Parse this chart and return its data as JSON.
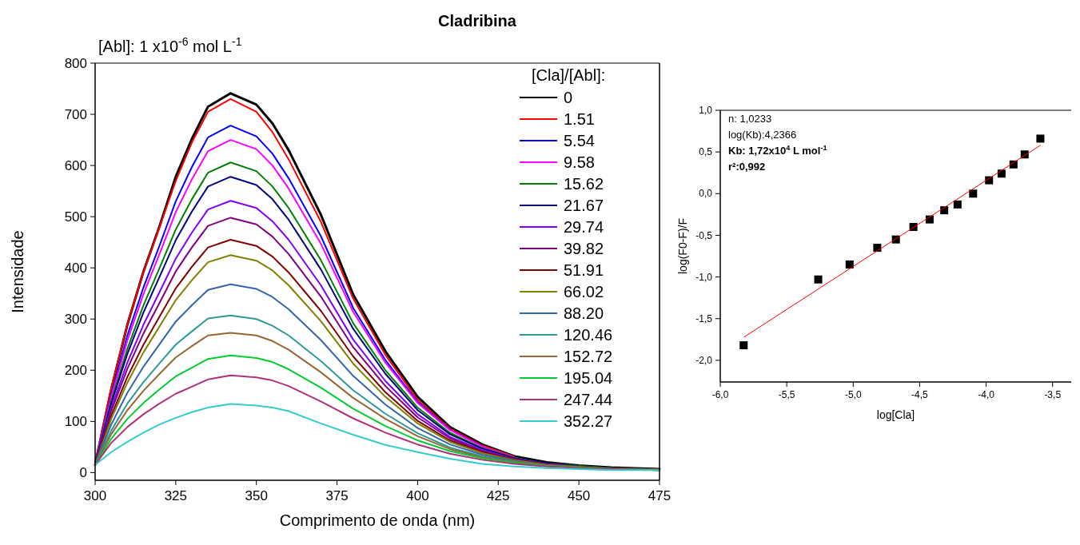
{
  "chart_data": [
    {
      "type": "line",
      "title": "Cladribina",
      "subtitle": "[Abl]: 1 x10$^{-6}$ mol L$^{-1}$",
      "xlabel": "Comprimento de onda (nm)",
      "ylabel": "Intensidade",
      "legend_title": "[Cla]/[Abl]:",
      "legend": "top right",
      "grid": false,
      "line_style": "solid",
      "marker": "none",
      "x": [
        300,
        305,
        310,
        315,
        320,
        325,
        330,
        335,
        342,
        350,
        355,
        360,
        370,
        380,
        390,
        400,
        410,
        420,
        430,
        440,
        450,
        460,
        475
      ],
      "xlim": [
        300,
        475
      ],
      "ylim": [
        -15,
        800
      ],
      "xticks": [
        300,
        325,
        350,
        375,
        400,
        425,
        450,
        475
      ],
      "yticks": [
        0,
        100,
        200,
        300,
        400,
        500,
        600,
        700,
        800
      ],
      "series": [
        {
          "name": "0",
          "color": "#000000",
          "values": [
            15,
            163,
            289,
            393,
            482,
            578,
            652,
            715,
            741,
            719,
            682,
            630,
            504,
            348,
            237,
            148,
            89,
            55,
            32,
            20,
            14,
            10,
            7
          ]
        },
        {
          "name": "1.51",
          "color": "#ff0000",
          "values": [
            20,
            165,
            290,
            392,
            480,
            570,
            645,
            705,
            730,
            705,
            665,
            612,
            490,
            340,
            230,
            142,
            86,
            53,
            31,
            null,
            null,
            null,
            null
          ]
        },
        {
          "name": "5.54",
          "color": "#0000ff",
          "values": [
            18,
            152,
            268,
            362,
            444,
            530,
            597,
            655,
            678,
            657,
            623,
            575,
            462,
            322,
            220,
            138,
            84,
            52,
            null,
            null,
            null,
            null,
            null
          ]
        },
        {
          "name": "9.58",
          "color": "#ff00ff",
          "values": [
            18,
            148,
            258,
            349,
            428,
            509,
            573,
            628,
            650,
            632,
            600,
            555,
            447,
            314,
            215,
            136,
            83,
            51,
            30,
            null,
            null,
            null,
            null
          ]
        },
        {
          "name": "15.62",
          "color": "#008000",
          "values": [
            17,
            140,
            242,
            327,
            400,
            475,
            534,
            586,
            606,
            589,
            559,
            517,
            415,
            292,
            200,
            127,
            78,
            48,
            29,
            18,
            13,
            9,
            6
          ]
        },
        {
          "name": "21.67",
          "color": "#000080",
          "values": [
            17,
            135,
            232,
            313,
            383,
            454,
            510,
            559,
            578,
            562,
            534,
            494,
            397,
            281,
            193,
            122,
            75,
            47,
            28,
            18,
            12,
            9,
            6
          ]
        },
        {
          "name": "29.74",
          "color": "#8000ff",
          "values": [
            16,
            126,
            215,
            289,
            353,
            418,
            469,
            514,
            531,
            517,
            491,
            455,
            366,
            260,
            179,
            114,
            70,
            44,
            27,
            17,
            12,
            null,
            null
          ]
        },
        {
          "name": "39.82",
          "color": "#800080",
          "values": [
            16,
            120,
            203,
            272,
            332,
            393,
            440,
            482,
            498,
            485,
            461,
            427,
            344,
            245,
            169,
            108,
            67,
            42,
            26,
            16,
            11,
            8,
            6
          ]
        },
        {
          "name": "51.91",
          "color": "#800000",
          "values": [
            15,
            111,
            187,
            250,
            305,
            360,
            402,
            440,
            455,
            443,
            422,
            391,
            316,
            227,
            157,
            101,
            63,
            40,
            25,
            16,
            11,
            8,
            6
          ]
        },
        {
          "name": "66.02",
          "color": "#808000",
          "values": [
            15,
            105,
            176,
            235,
            286,
            337,
            376,
            411,
            425,
            414,
            395,
            366,
            296,
            213,
            148,
            96,
            60,
            38,
            24,
            15,
            11,
            8,
            6
          ]
        },
        {
          "name": "88.20",
          "color": "#3366aa",
          "values": [
            15,
            94,
            156,
            207,
            251,
            295,
            327,
            357,
            368,
            359,
            343,
            319,
            259,
            189,
            133,
            87,
            55,
            35,
            22,
            14,
            10,
            7,
            5
          ]
        },
        {
          "name": "120.46",
          "color": "#2f9a9a",
          "values": [
            15,
            82,
            135,
            177,
            214,
            250,
            276,
            301,
            307,
            300,
            287,
            268,
            218,
            161,
            115,
            77,
            49,
            32,
            21,
            14,
            10,
            7,
            5
          ]
        },
        {
          "name": "152.72",
          "color": "#996633",
          "values": [
            15,
            75,
            122,
            160,
            193,
            225,
            247,
            268,
            273,
            268,
            257,
            240,
            196,
            146,
            105,
            71,
            46,
            30,
            20,
            14,
            10,
            7,
            5
          ]
        },
        {
          "name": "195.04",
          "color": "#00cc33",
          "values": [
            15,
            66,
            105,
            136,
            163,
            188,
            205,
            222,
            229,
            224,
            216,
            202,
            166,
            125,
            91,
            63,
            42,
            28,
            19,
            13,
            10,
            7,
            5
          ]
        },
        {
          "name": "247.44",
          "color": "#b0307a",
          "values": [
            15,
            58,
            89,
            114,
            135,
            154,
            168,
            182,
            190,
            186,
            180,
            169,
            139,
            106,
            78,
            55,
            37,
            25,
            17,
            12,
            9,
            7,
            5
          ]
        },
        {
          "name": "352.27",
          "color": "#33cccc",
          "values": [
            15,
            40,
            60,
            78,
            94,
            107,
            118,
            127,
            134,
            131,
            127,
            120,
            96,
            74,
            54,
            40,
            27,
            17,
            12,
            9,
            7,
            5,
            5
          ]
        }
      ]
    },
    {
      "type": "scatter",
      "xlabel": "log[Cla]",
      "ylabel": "log(F0-F)/F",
      "grid": false,
      "legend": false,
      "marker": "square",
      "annotations": [
        "n: 1,0233",
        "log(Kb):4,2366",
        "Kb: 1,72x10$^{4}$ L mol$^{-1}$",
        "r²:0,992"
      ],
      "x": [
        -5.824,
        -5.263,
        -5.027,
        -4.819,
        -4.679,
        -4.547,
        -4.425,
        -4.315,
        -4.215,
        -4.098,
        -3.978,
        -3.884,
        -3.794,
        -3.71,
        -3.592
      ],
      "xlim": [
        -6,
        -3.36
      ],
      "ylim": [
        -2.26,
        1
      ],
      "xticks": [
        {
          "value": -6,
          "label": "-6,0"
        },
        {
          "value": -5.5,
          "label": "-5,5"
        },
        {
          "value": -5,
          "label": "-5,0"
        },
        {
          "value": -4.5,
          "label": "-4,5"
        },
        {
          "value": -4,
          "label": "-4,0"
        },
        {
          "value": -3.5,
          "label": "-3,5"
        }
      ],
      "yticks": [
        {
          "value": -2,
          "label": "-2,0"
        },
        {
          "value": -1.5,
          "label": "-1,5"
        },
        {
          "value": -1,
          "label": "-1,0"
        },
        {
          "value": -0.5,
          "label": "-0,5"
        },
        {
          "value": 0,
          "label": "0,0"
        },
        {
          "value": 0.5,
          "label": "0,5"
        },
        {
          "value": 1,
          "label": "1,0"
        }
      ],
      "series": [
        {
          "color": "#000000",
          "values": [
            -1.82,
            -1.03,
            -0.85,
            -0.65,
            -0.55,
            -0.4,
            -0.31,
            -0.2,
            -0.13,
            0,
            0.16,
            0.24,
            0.35,
            0.47,
            0.66
          ]
        },
        {
          "type": "line",
          "marker": "none",
          "color": "#ff0000",
          "x": [
            -5.82,
            -3.592
          ],
          "values": [
            -1.72,
            0.58
          ]
        }
      ]
    }
  ]
}
